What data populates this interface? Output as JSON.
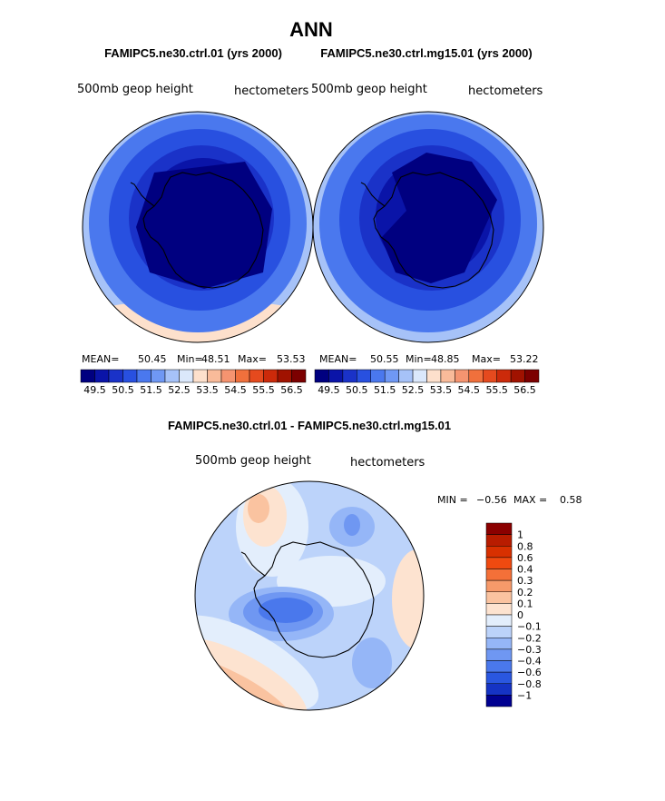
{
  "figure_title": "ANN",
  "panels": [
    {
      "case_title": "FAMIPC5.ne30.ctrl.01 (yrs 2000)",
      "variable": "500mb geop height",
      "units": "hectometers",
      "stats": {
        "mean_label": "MEAN=",
        "mean": "50.45",
        "min_label": "Min=",
        "min": "48.51",
        "max_label": "Max=",
        "max": "53.53"
      }
    },
    {
      "case_title": "FAMIPC5.ne30.ctrl.mg15.01 (yrs 2000)",
      "variable": "500mb geop height",
      "units": "hectometers",
      "stats": {
        "mean_label": "MEAN=",
        "mean": "50.55",
        "min_label": "Min=",
        "min": "48.85",
        "max_label": "Max=",
        "max": "53.22"
      }
    }
  ],
  "field_colorbar": {
    "colors": [
      "#000080",
      "#0a14a8",
      "#1a32c8",
      "#2850e0",
      "#4a78ee",
      "#6f98f4",
      "#a6c2f8",
      "#dbe8fb",
      "#fde0cc",
      "#f9bb9a",
      "#f59470",
      "#f0703c",
      "#e54a1e",
      "#cc2a0a",
      "#a01200",
      "#7c0000"
    ],
    "labels": [
      "49.5",
      "50.5",
      "51.5",
      "52.5",
      "53.5",
      "54.5",
      "55.5",
      "56.5"
    ]
  },
  "diff": {
    "title": "FAMIPC5.ne30.ctrl.01 - FAMIPC5.ne30.ctrl.mg15.01",
    "variable": "500mb geop height",
    "units": "hectometers",
    "min_label": "MIN =",
    "min": "−0.56",
    "max_label": "MAX =",
    "max": "0.58",
    "colorbar": {
      "colors": [
        "#8b0000",
        "#b81c00",
        "#d83000",
        "#f04a10",
        "#f47038",
        "#f79a6a",
        "#fac3a0",
        "#fde3d0",
        "#e3eefc",
        "#bcd3fa",
        "#95b6f7",
        "#6f97f2",
        "#4a78ec",
        "#2a57e0",
        "#1533c4",
        "#000090"
      ],
      "labels": [
        "1",
        "0.8",
        "0.6",
        "0.4",
        "0.3",
        "0.2",
        "0.1",
        "0",
        "−0.1",
        "−0.2",
        "−0.3",
        "−0.4",
        "−0.6",
        "−0.8",
        "−1"
      ]
    }
  },
  "chart_data": [
    {
      "type": "polar-stereographic contour map",
      "title": "FAMIPC5.ne30.ctrl.01 (yrs 2000)",
      "field": "500mb geop height",
      "units": "hectometers",
      "mean": 50.45,
      "min": 48.51,
      "max": 53.53,
      "contour_levels": [
        49.5,
        50.0,
        50.5,
        51.0,
        51.5,
        52.0,
        52.5,
        53.0,
        53.5,
        54.0,
        54.5,
        55.0,
        55.5,
        56.0,
        56.5
      ]
    },
    {
      "type": "polar-stereographic contour map",
      "title": "FAMIPC5.ne30.ctrl.mg15.01 (yrs 2000)",
      "field": "500mb geop height",
      "units": "hectometers",
      "mean": 50.55,
      "min": 48.85,
      "max": 53.22,
      "contour_levels": [
        49.5,
        50.0,
        50.5,
        51.0,
        51.5,
        52.0,
        52.5,
        53.0,
        53.5,
        54.0,
        54.5,
        55.0,
        55.5,
        56.0,
        56.5
      ]
    },
    {
      "type": "polar-stereographic contour map (difference)",
      "title": "FAMIPC5.ne30.ctrl.01 - FAMIPC5.ne30.ctrl.mg15.01",
      "field": "500mb geop height",
      "units": "hectometers",
      "min": -0.56,
      "max": 0.58,
      "contour_levels": [
        -1,
        -0.8,
        -0.6,
        -0.4,
        -0.3,
        -0.2,
        -0.1,
        0,
        0.1,
        0.2,
        0.3,
        0.4,
        0.6,
        0.8,
        1
      ]
    }
  ]
}
